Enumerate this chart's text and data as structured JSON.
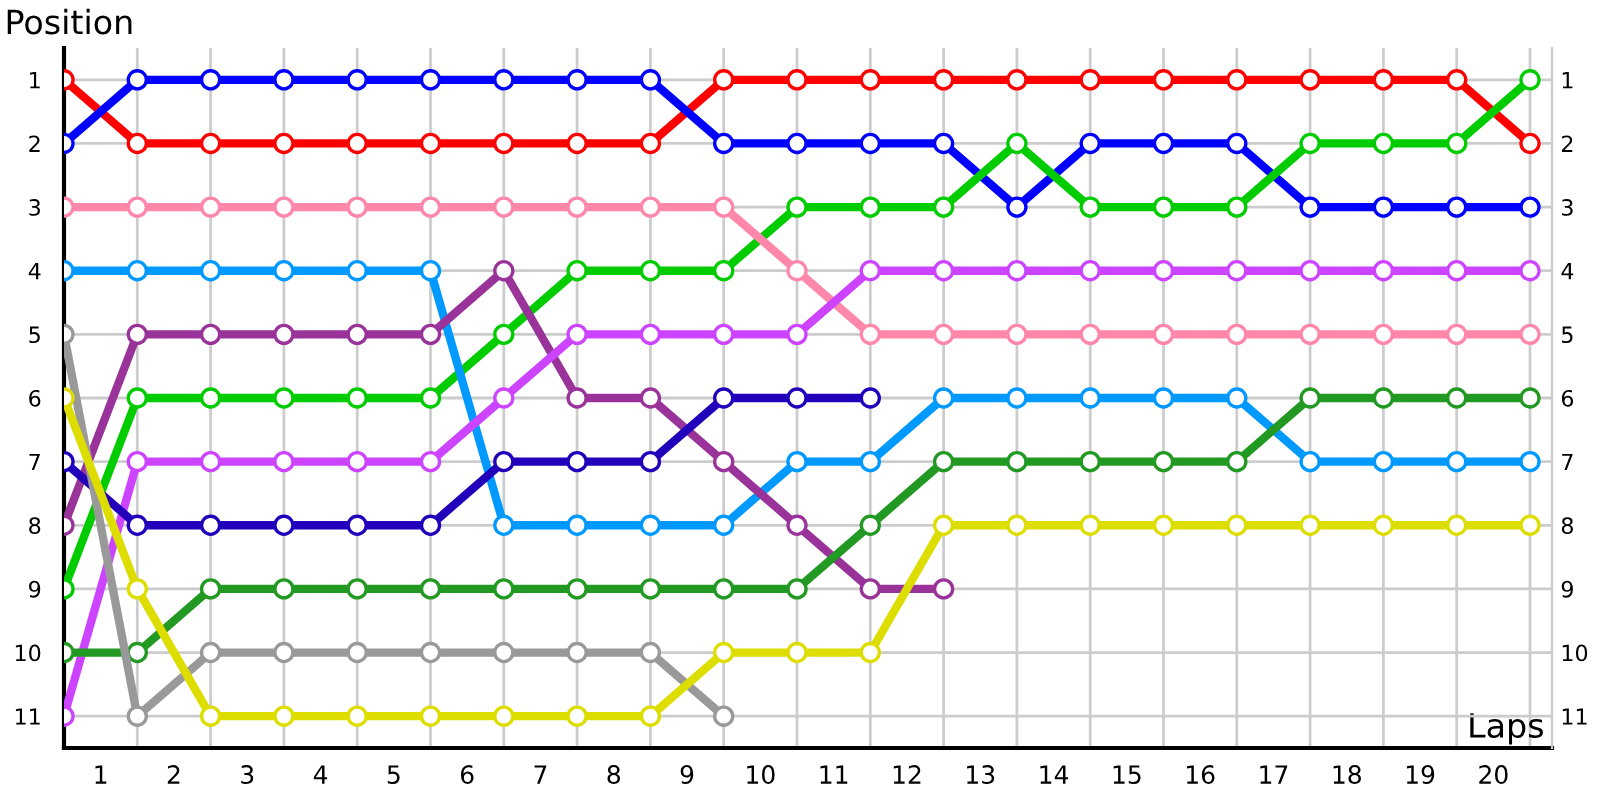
{
  "chart_data": {
    "type": "line",
    "xlabel": "Laps",
    "ylabel": "Position",
    "x": [
      0,
      1,
      2,
      3,
      4,
      5,
      6,
      7,
      8,
      9,
      10,
      11,
      12,
      13,
      14,
      15,
      16,
      17,
      18,
      19,
      20
    ],
    "series": [
      {
        "color": "#ff0000",
        "values": [
          1,
          2,
          2,
          2,
          2,
          2,
          2,
          2,
          2,
          1,
          1,
          1,
          1,
          1,
          1,
          1,
          1,
          1,
          1,
          1,
          2
        ]
      },
      {
        "color": "#0000ff",
        "values": [
          2,
          1,
          1,
          1,
          1,
          1,
          1,
          1,
          1,
          2,
          2,
          2,
          2,
          3,
          2,
          2,
          2,
          3,
          3,
          3,
          3
        ]
      },
      {
        "color": "#00cc00",
        "values": [
          9,
          6,
          6,
          6,
          6,
          6,
          5,
          4,
          4,
          4,
          3,
          3,
          3,
          2,
          3,
          3,
          3,
          2,
          2,
          2,
          1
        ]
      },
      {
        "color": "#ff88aa",
        "values": [
          3,
          3,
          3,
          3,
          3,
          3,
          3,
          3,
          3,
          3,
          4,
          5,
          5,
          5,
          5,
          5,
          5,
          5,
          5,
          5,
          5
        ]
      },
      {
        "color": "#0099ff",
        "values": [
          4,
          4,
          4,
          4,
          4,
          4,
          8,
          8,
          8,
          8,
          7,
          7,
          6,
          6,
          6,
          6,
          6,
          7,
          7,
          7,
          7
        ]
      },
      {
        "color": "#993399",
        "values": [
          8,
          5,
          5,
          5,
          5,
          5,
          4,
          6,
          6,
          7,
          8,
          9,
          9,
          null,
          null,
          null,
          null,
          null,
          null,
          null,
          null
        ]
      },
      {
        "color": "#cc44ff",
        "values": [
          11,
          7,
          7,
          7,
          7,
          7,
          6,
          5,
          5,
          5,
          5,
          4,
          4,
          4,
          4,
          4,
          4,
          4,
          4,
          4,
          4
        ]
      },
      {
        "color": "#2200bb",
        "values": [
          7,
          8,
          8,
          8,
          8,
          8,
          7,
          7,
          7,
          6,
          6,
          6,
          null,
          null,
          null,
          null,
          null,
          null,
          null,
          null,
          null
        ]
      },
      {
        "color": "#229922",
        "values": [
          10,
          10,
          9,
          9,
          9,
          9,
          9,
          9,
          9,
          9,
          9,
          8,
          7,
          7,
          7,
          7,
          7,
          6,
          6,
          6,
          6
        ]
      },
      {
        "color": "#999999",
        "values": [
          5,
          11,
          10,
          10,
          10,
          10,
          10,
          10,
          10,
          11,
          null,
          null,
          null,
          null,
          null,
          null,
          null,
          null,
          null,
          null,
          null
        ]
      },
      {
        "color": "#dddd00",
        "values": [
          6,
          9,
          11,
          11,
          11,
          11,
          11,
          11,
          11,
          10,
          10,
          10,
          8,
          8,
          8,
          8,
          8,
          8,
          8,
          8,
          8
        ]
      }
    ],
    "xlim": [
      0,
      20.3
    ],
    "xticks": [
      {
        "value": 0,
        "label": null
      },
      {
        "value": 0.5,
        "label": "1"
      },
      {
        "value": 1,
        "label": null
      },
      {
        "value": 1.5,
        "label": "2"
      },
      {
        "value": 2,
        "label": null
      },
      {
        "value": 2.5,
        "label": "3"
      },
      {
        "value": 3,
        "label": null
      },
      {
        "value": 3.5,
        "label": "4"
      },
      {
        "value": 4,
        "label": null
      },
      {
        "value": 4.5,
        "label": "5"
      },
      {
        "value": 5,
        "label": null
      },
      {
        "value": 5.5,
        "label": "6"
      },
      {
        "value": 6,
        "label": null
      },
      {
        "value": 6.5,
        "label": "7"
      },
      {
        "value": 7,
        "label": null
      },
      {
        "value": 7.5,
        "label": "8"
      },
      {
        "value": 8,
        "label": null
      },
      {
        "value": 8.5,
        "label": "9"
      },
      {
        "value": 9,
        "label": null
      },
      {
        "value": 9.5,
        "label": "10"
      },
      {
        "value": 10,
        "label": null
      },
      {
        "value": 10.5,
        "label": "11"
      },
      {
        "value": 11,
        "label": null
      },
      {
        "value": 11.5,
        "label": "12"
      },
      {
        "value": 12,
        "label": null
      },
      {
        "value": 12.5,
        "label": "13"
      },
      {
        "value": 13,
        "label": null
      },
      {
        "value": 13.5,
        "label": "14"
      },
      {
        "value": 14,
        "label": null
      },
      {
        "value": 14.5,
        "label": "15"
      },
      {
        "value": 15,
        "label": null
      },
      {
        "value": 15.5,
        "label": "16"
      },
      {
        "value": 16,
        "label": null
      },
      {
        "value": 16.5,
        "label": "17"
      },
      {
        "value": 17,
        "label": null
      },
      {
        "value": 17.5,
        "label": "18"
      },
      {
        "value": 18,
        "label": null
      },
      {
        "value": 18.5,
        "label": "19"
      },
      {
        "value": 19,
        "label": null
      },
      {
        "value": 19.5,
        "label": "20"
      },
      {
        "value": 20,
        "label": null
      }
    ],
    "ylim": [
      11.5,
      0.5
    ],
    "yticks": [
      1,
      2,
      3,
      4,
      5,
      6,
      7,
      8,
      9,
      10,
      11
    ],
    "y2lim": [
      11.5,
      0.5
    ],
    "y2ticks": [
      1,
      2,
      3,
      4,
      5,
      6,
      7,
      8,
      9,
      10,
      11
    ],
    "grid": true,
    "marker": "circle",
    "line_style": "solid"
  }
}
